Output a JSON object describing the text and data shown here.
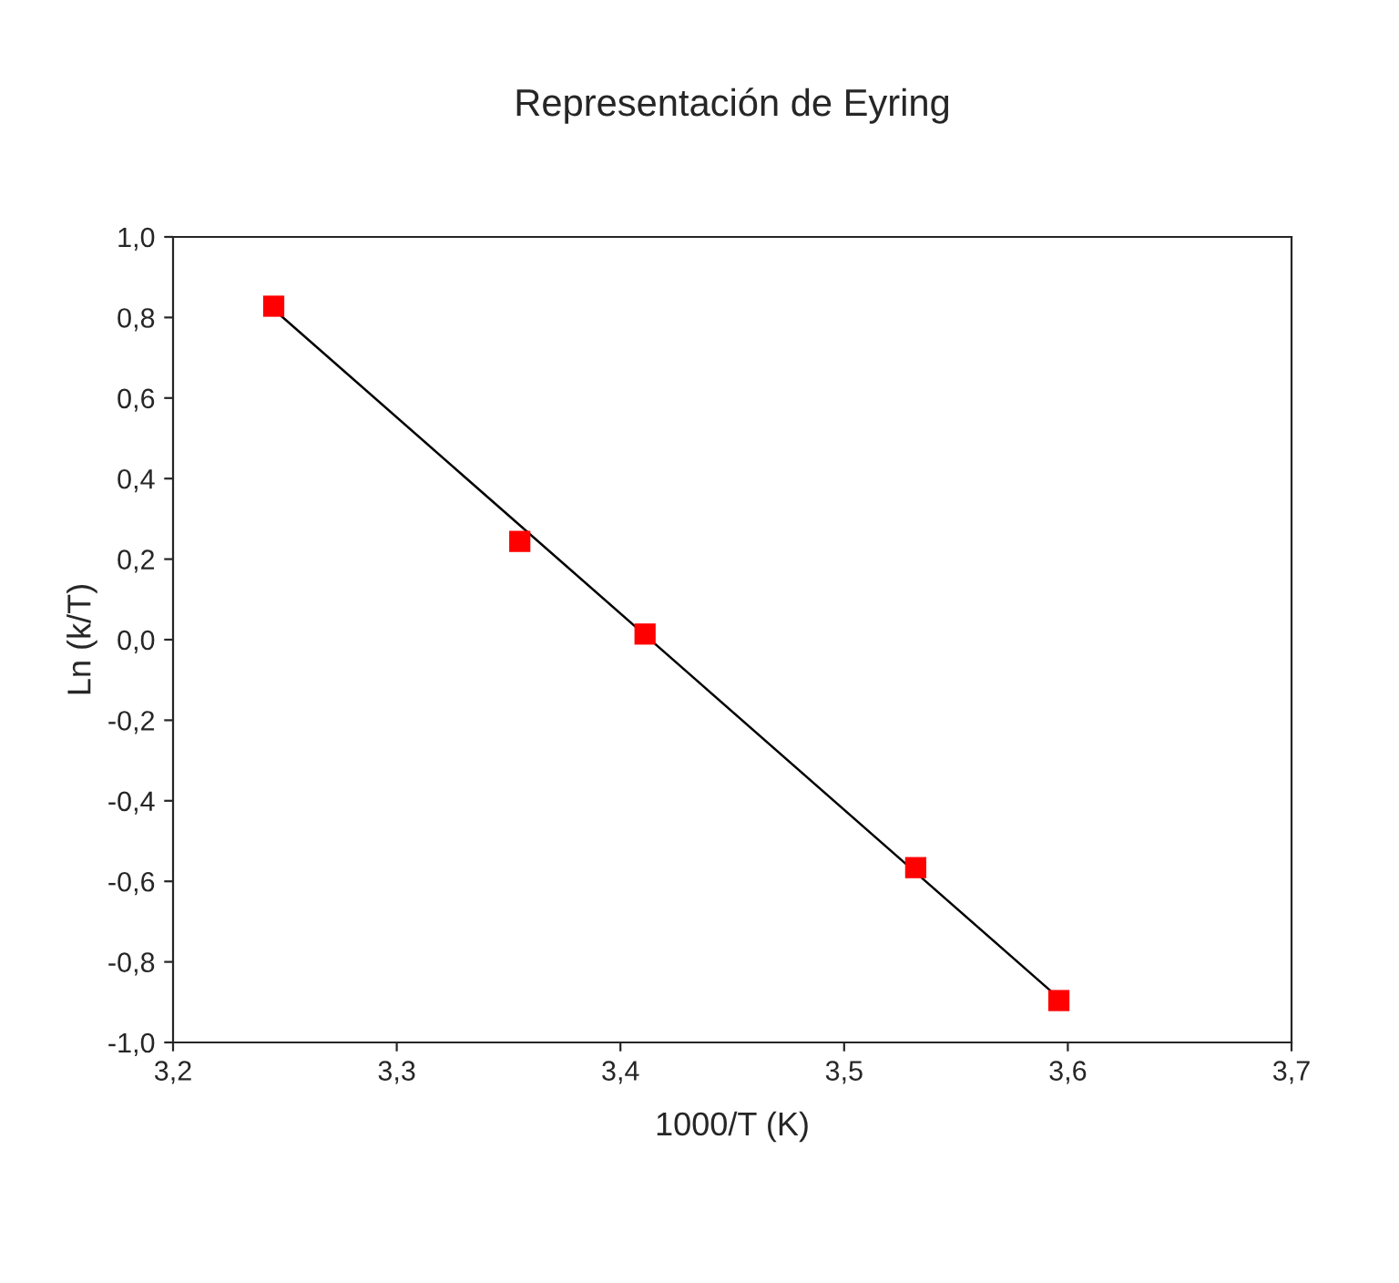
{
  "chart_data": {
    "type": "scatter",
    "title": "Representación de Eyring",
    "xlabel": "1000/T (K)",
    "ylabel": "Ln (k/T)",
    "series": [
      {
        "color": "#ff0000",
        "marker": "square",
        "x": [
          3.245,
          3.355,
          3.411,
          3.532,
          3.596
        ],
        "values": [
          0.828,
          0.244,
          0.014,
          -0.566,
          -0.896
        ]
      },
      {
        "type": "line",
        "color": "#000000",
        "marker": "none",
        "line_style": "solid",
        "x": [
          3.245,
          3.596
        ],
        "values": [
          0.82,
          -0.89
        ]
      }
    ],
    "xlim": [
      3.2,
      3.7
    ],
    "ylim": [
      -1.0,
      1.0
    ],
    "xticks": [
      {
        "value": 3.2,
        "label": "3,2"
      },
      {
        "value": 3.3,
        "label": "3,3"
      },
      {
        "value": 3.4,
        "label": "3,4"
      },
      {
        "value": 3.5,
        "label": "3,5"
      },
      {
        "value": 3.6,
        "label": "3,6"
      },
      {
        "value": 3.7,
        "label": "3,7"
      }
    ],
    "yticks": [
      {
        "value": -1.0,
        "label": "-1,0"
      },
      {
        "value": -0.8,
        "label": "-0,8"
      },
      {
        "value": -0.6,
        "label": "-0,6"
      },
      {
        "value": -0.4,
        "label": "-0,4"
      },
      {
        "value": -0.2,
        "label": "-0,2"
      },
      {
        "value": 0.0,
        "label": "0,0"
      },
      {
        "value": 0.2,
        "label": "0,2"
      },
      {
        "value": 0.4,
        "label": "0,4"
      },
      {
        "value": 0.6,
        "label": "0,6"
      },
      {
        "value": 0.8,
        "label": "0,8"
      },
      {
        "value": 1.0,
        "label": "1,0"
      }
    ],
    "grid": false,
    "legend": false
  }
}
